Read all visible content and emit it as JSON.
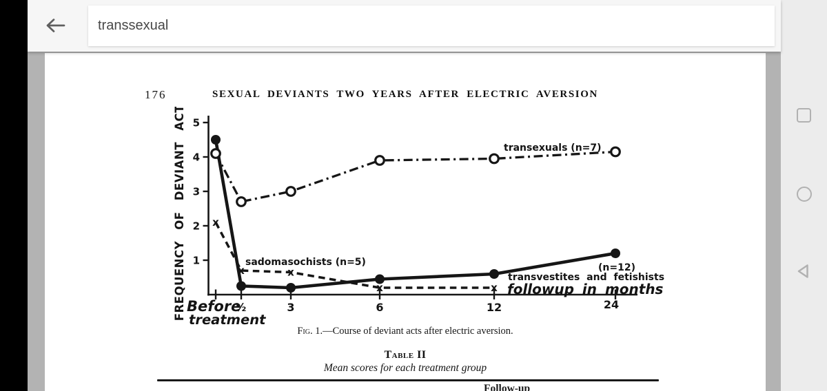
{
  "toolbar": {
    "back_icon": "arrow-left",
    "search": {
      "value": "transsexual"
    }
  },
  "android_nav": {
    "recents_icon": "square-outline",
    "home_icon": "circle-outline",
    "back_icon": "triangle-left-outline"
  },
  "colors": {
    "toolbar_bg": "#f6f6f6",
    "navbar_bg": "#ececec",
    "viewer_bg": "#b3b3b3",
    "page_bg": "#ffffff",
    "ink": "#161616",
    "bezel": "#000000"
  },
  "document": {
    "page_number": "176",
    "running_head": "SEXUAL DEVIANTS TWO YEARS AFTER ELECTRIC AVERSION",
    "figure_caption": {
      "prefix": "Fig. 1.",
      "rest": "—Course of deviant acts after electric aversion."
    },
    "table": {
      "title": "Table II",
      "subtitle": "Mean scores for each treatment group",
      "partial_column_header": "Follow-up"
    }
  },
  "chart_data": {
    "type": "line",
    "title": "",
    "ylabel": "FREQUENCY OF DEVIANT ACTS",
    "xlabel": "followup in months",
    "ylim": [
      0,
      5
    ],
    "yticks": [
      5,
      4,
      3,
      2,
      1
    ],
    "grid": false,
    "legend_position": "inline-labels",
    "categories": [
      "Before treatment",
      "½",
      "3",
      "6",
      "12",
      "24"
    ],
    "x_months": [
      0,
      0.5,
      3,
      6,
      12,
      24
    ],
    "x_axis": {
      "first_label_lines": [
        "Before",
        "treatment"
      ],
      "tick_labels": [
        "½",
        "3",
        "6",
        "12",
        "24"
      ]
    },
    "series": [
      {
        "id": "transsexuals",
        "label": "transexuals (n=7)",
        "n": 7,
        "line": "dashdot",
        "marker": "open-circle",
        "values": [
          4.1,
          2.7,
          3.0,
          3.9,
          3.95,
          4.15
        ]
      },
      {
        "id": "sadomasochists",
        "label": "sadomasochists (n=5)",
        "n": 5,
        "line": "dashed",
        "marker": "x",
        "values": [
          2.1,
          0.7,
          0.65,
          0.2,
          0.2,
          null
        ]
      },
      {
        "id": "transvestites-fetishists",
        "label": "transvestites and fetishists",
        "label_n": "(n=12)",
        "n": 12,
        "line": "solid",
        "marker": "filled-circle",
        "values": [
          4.5,
          0.25,
          0.2,
          0.45,
          0.6,
          1.2
        ]
      }
    ]
  }
}
